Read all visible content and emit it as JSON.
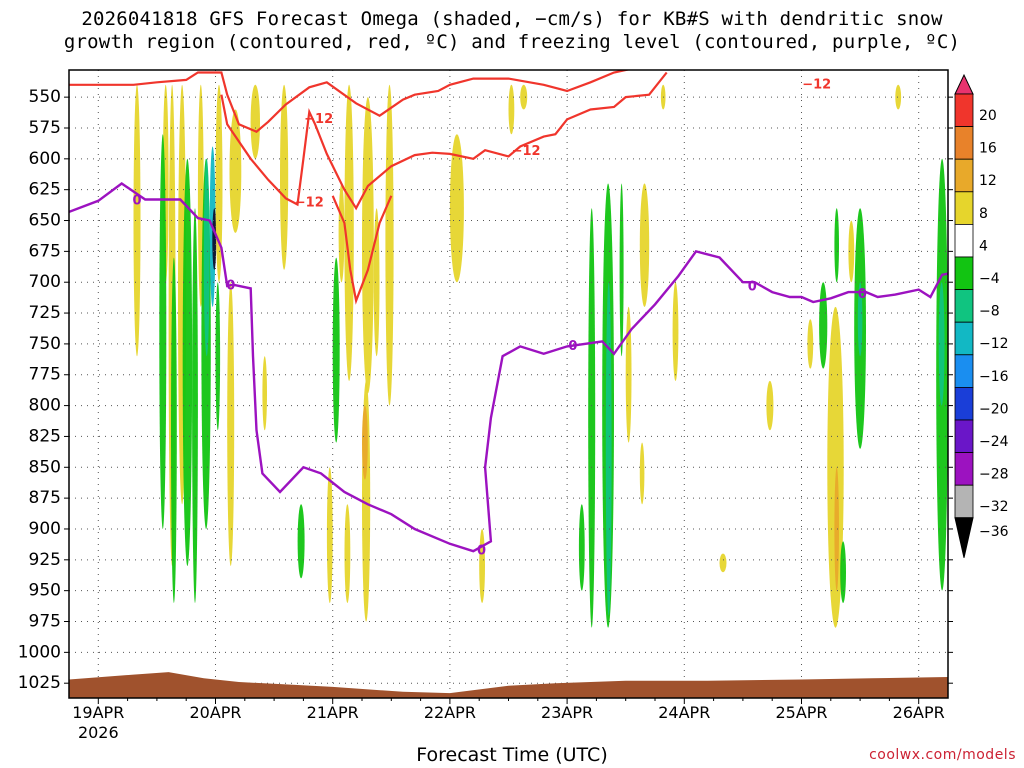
{
  "title_line1": "2026041818 GFS Forecast Omega (shaded, −cm/s) for KB#S with dendritic snow",
  "title_line2": "growth region (contoured, red, ºC) and freezing level (contoured, purple, ºC)",
  "credit": "coolwx.com/models",
  "chart_data": {
    "type": "heatmap",
    "xlabel": "Forecast Time (UTC)",
    "x_ticks": [
      "19APR",
      "20APR",
      "21APR",
      "22APR",
      "23APR",
      "24APR",
      "25APR",
      "26APR"
    ],
    "x_year_label": "2026",
    "x_range_days": [
      -0.25,
      7.25
    ],
    "y_ticks": [
      550,
      575,
      600,
      625,
      650,
      675,
      700,
      725,
      750,
      775,
      800,
      825,
      850,
      875,
      900,
      925,
      950,
      975,
      1000,
      1025
    ],
    "y_range_hpa": [
      528,
      1037
    ],
    "grid": true,
    "colorbar": {
      "labels": [
        "20",
        "16",
        "12",
        "8",
        "4",
        "−4",
        "−8",
        "−12",
        "−16",
        "−20",
        "−24",
        "−28",
        "−32",
        "−36"
      ],
      "colors": [
        "#e8336e",
        "#f0352c",
        "#e8822a",
        "#e8a92a",
        "#e6d52c",
        "#ffffff",
        "#12c412",
        "#10c480",
        "#12b8c4",
        "#1a8ef0",
        "#1a3ed8",
        "#6a16c8",
        "#9c12c0",
        "#b4b4b4",
        "#000000"
      ]
    },
    "shading_colors": {
      "yellow": "#e6d52c",
      "orange": "#e8a92a",
      "green": "#12c412",
      "teal": "#10c480",
      "cyan": "#12b8c4",
      "blue": "#1a8ef0",
      "dark": "#101030"
    },
    "dgz_contour_label": "−12",
    "freezing_contour_label": "0",
    "dgz_color": "#f0352c",
    "freezing_color": "#9c12c0",
    "ground_color": "#a0522d",
    "dgz_upper": [
      [
        -0.25,
        540
      ],
      [
        0.3,
        540
      ],
      [
        0.5,
        538
      ],
      [
        0.75,
        536
      ],
      [
        0.85,
        530
      ],
      [
        1.05,
        530
      ],
      [
        1.1,
        548
      ],
      [
        1.2,
        572
      ],
      [
        1.35,
        578
      ],
      [
        1.45,
        570
      ],
      [
        1.6,
        556
      ],
      [
        1.8,
        542
      ],
      [
        1.95,
        538
      ],
      [
        2.2,
        555
      ],
      [
        2.4,
        565
      ],
      [
        2.6,
        552
      ],
      [
        2.7,
        548
      ],
      [
        2.9,
        545
      ],
      [
        3.0,
        540
      ],
      [
        3.2,
        535
      ],
      [
        3.5,
        535
      ],
      [
        3.8,
        540
      ],
      [
        4.0,
        545
      ],
      [
        4.2,
        538
      ],
      [
        4.4,
        530
      ],
      [
        4.6,
        526
      ]
    ],
    "dgz_lower": [
      [
        1.05,
        548
      ],
      [
        1.1,
        572
      ],
      [
        1.3,
        600
      ],
      [
        1.45,
        617
      ],
      [
        1.6,
        632
      ],
      [
        1.7,
        637
      ],
      [
        1.75,
        600
      ],
      [
        1.8,
        562
      ],
      [
        1.85,
        572
      ],
      [
        1.95,
        596
      ],
      [
        2.1,
        625
      ],
      [
        2.2,
        640
      ],
      [
        2.3,
        622
      ],
      [
        2.5,
        606
      ],
      [
        2.7,
        597
      ],
      [
        2.85,
        595
      ],
      [
        3.0,
        596
      ],
      [
        3.2,
        600
      ],
      [
        3.3,
        593
      ],
      [
        3.5,
        598
      ],
      [
        3.6,
        590
      ],
      [
        3.8,
        582
      ],
      [
        3.9,
        580
      ],
      [
        4.0,
        568
      ],
      [
        4.2,
        560
      ],
      [
        4.4,
        558
      ],
      [
        4.5,
        550
      ],
      [
        4.7,
        548
      ],
      [
        4.85,
        530
      ]
    ],
    "dgz_notch": [
      [
        2.0,
        630
      ],
      [
        2.1,
        652
      ],
      [
        2.15,
        690
      ],
      [
        2.2,
        715
      ],
      [
        2.3,
        690
      ],
      [
        2.4,
        652
      ],
      [
        2.5,
        630
      ]
    ],
    "freezing_line": [
      [
        -0.25,
        643
      ],
      [
        0.0,
        634
      ],
      [
        0.2,
        620
      ],
      [
        0.4,
        633
      ],
      [
        0.7,
        633
      ],
      [
        0.85,
        648
      ],
      [
        0.95,
        650
      ],
      [
        1.05,
        672
      ],
      [
        1.1,
        703
      ],
      [
        1.15,
        702
      ],
      [
        1.3,
        705
      ],
      [
        1.32,
        760
      ],
      [
        1.35,
        820
      ],
      [
        1.4,
        855
      ],
      [
        1.55,
        870
      ],
      [
        1.75,
        850
      ],
      [
        1.9,
        855
      ],
      [
        2.1,
        870
      ],
      [
        2.3,
        880
      ],
      [
        2.5,
        888
      ],
      [
        2.7,
        900
      ],
      [
        3.0,
        912
      ],
      [
        3.2,
        918
      ],
      [
        3.35,
        910
      ],
      [
        3.3,
        850
      ],
      [
        3.35,
        810
      ],
      [
        3.45,
        760
      ],
      [
        3.6,
        752
      ],
      [
        3.8,
        758
      ],
      [
        4.0,
        752
      ],
      [
        4.3,
        748
      ],
      [
        4.4,
        758
      ],
      [
        4.55,
        738
      ],
      [
        4.75,
        718
      ],
      [
        4.95,
        695
      ],
      [
        5.1,
        675
      ],
      [
        5.3,
        680
      ],
      [
        5.5,
        700
      ],
      [
        5.6,
        700
      ],
      [
        5.75,
        708
      ],
      [
        5.9,
        712
      ],
      [
        6.0,
        712
      ],
      [
        6.1,
        716
      ],
      [
        6.25,
        713
      ],
      [
        6.4,
        708
      ],
      [
        6.55,
        708
      ],
      [
        6.65,
        712
      ],
      [
        6.8,
        710
      ],
      [
        7.0,
        706
      ],
      [
        7.1,
        712
      ],
      [
        7.2,
        694
      ],
      [
        7.25,
        693
      ]
    ],
    "ground_top": [
      [
        -0.25,
        1022
      ],
      [
        0.3,
        1018
      ],
      [
        0.6,
        1016
      ],
      [
        0.9,
        1021
      ],
      [
        1.2,
        1024
      ],
      [
        1.6,
        1026
      ],
      [
        2.0,
        1028
      ],
      [
        2.6,
        1032
      ],
      [
        3.0,
        1033
      ],
      [
        3.5,
        1027
      ],
      [
        3.9,
        1025
      ],
      [
        4.5,
        1023
      ],
      [
        5.2,
        1023
      ],
      [
        6.0,
        1022
      ],
      [
        6.6,
        1021
      ],
      [
        7.25,
        1020
      ]
    ]
  }
}
